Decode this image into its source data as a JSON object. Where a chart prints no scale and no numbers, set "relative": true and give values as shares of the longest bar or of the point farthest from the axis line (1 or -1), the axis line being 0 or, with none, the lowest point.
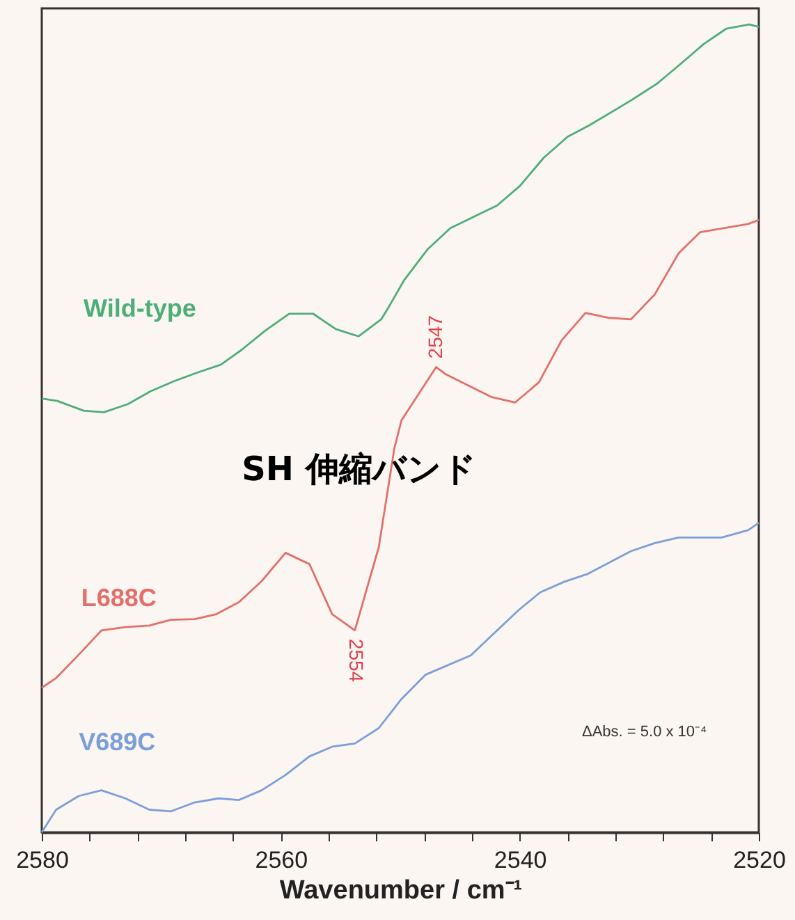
{
  "chart_data": {
    "type": "line",
    "relative": true,
    "xlabel": "Wavenumber / cm⁻¹",
    "xlim": [
      2580,
      2520
    ],
    "xticks": [
      2580,
      {
        "value": 2576,
        "label": null
      },
      {
        "value": 2572,
        "label": null
      },
      {
        "value": 2568,
        "label": null
      },
      {
        "value": 2564,
        "label": null
      },
      2560,
      {
        "value": 2556,
        "label": null
      },
      {
        "value": 2552,
        "label": null
      },
      {
        "value": 2548,
        "label": null
      },
      {
        "value": 2544,
        "label": null
      },
      2540,
      {
        "value": 2536,
        "label": null
      },
      {
        "value": 2532,
        "label": null
      },
      {
        "value": 2528,
        "label": null
      },
      {
        "value": 2524,
        "label": null
      },
      2520
    ],
    "grid": false,
    "legend": false,
    "line_style": "solid",
    "marker": "none",
    "annotations": [
      "SH 伸縮バンド",
      "ΔAbs. = 5.0 x 10⁻⁴",
      {
        "text": "2547",
        "x": 2547,
        "y": 0.576
      },
      {
        "text": "2554",
        "x": 2553.8,
        "y": 0.25
      }
    ],
    "series": [
      {
        "name": "Wild-type",
        "color": "#4fae78",
        "x": [
          2580,
          2578.7,
          2576.5,
          2574.8,
          2572.8,
          2570.9,
          2569,
          2567,
          2565,
          2563.3,
          2561.3,
          2559.3,
          2557.3,
          2555.4,
          2553.5,
          2551.6,
          2550.9,
          2549.7,
          2547.7,
          2545.8,
          2541.9,
          2540,
          2538,
          2536,
          2534.2,
          2530.7,
          2528.5,
          2526.4,
          2524.6,
          2522.7,
          2520.8,
          2520
        ],
        "values": [
          0.537,
          0.534,
          0.522,
          0.52,
          0.53,
          0.546,
          0.558,
          0.569,
          0.579,
          0.597,
          0.621,
          0.642,
          0.642,
          0.623,
          0.614,
          0.635,
          0.652,
          0.683,
          0.722,
          0.748,
          0.776,
          0.8,
          0.835,
          0.861,
          0.875,
          0.906,
          0.927,
          0.953,
          0.976,
          0.995,
          1,
          0.997
        ]
      },
      {
        "name": "L688C",
        "color": "#e2706a",
        "x": [
          2580,
          2578.8,
          2576.7,
          2575,
          2573,
          2571,
          2569.2,
          2567.2,
          2565.4,
          2563.5,
          2561.6,
          2559.6,
          2557.6,
          2555.7,
          2553.8,
          2551.8,
          2550.5,
          2549.9,
          2547,
          2546.2,
          2542.4,
          2540.4,
          2538.4,
          2536.5,
          2534.5,
          2532.6,
          2530.7,
          2528.7,
          2526.7,
          2524.9,
          2520.9,
          2520
        ],
        "values": [
          0.179,
          0.191,
          0.223,
          0.25,
          0.254,
          0.256,
          0.263,
          0.264,
          0.27,
          0.285,
          0.311,
          0.346,
          0.332,
          0.27,
          0.25,
          0.353,
          0.475,
          0.51,
          0.576,
          0.567,
          0.539,
          0.532,
          0.557,
          0.609,
          0.643,
          0.637,
          0.635,
          0.666,
          0.717,
          0.743,
          0.753,
          0.758
        ]
      },
      {
        "name": "V689C",
        "color": "#7b9fd8",
        "x": [
          2580,
          2578.8,
          2576.9,
          2575,
          2573,
          2571,
          2569.2,
          2567.2,
          2565.2,
          2563.5,
          2561.6,
          2559.6,
          2557.6,
          2555.7,
          2553.8,
          2551.8,
          2549.9,
          2547.9,
          2544.1,
          2542.4,
          2540.1,
          2538.3,
          2536.3,
          2534.3,
          2530.7,
          2528.7,
          2526.7,
          2523.1,
          2520.9,
          2520
        ],
        "values": [
          0,
          0.028,
          0.045,
          0.052,
          0.042,
          0.028,
          0.026,
          0.037,
          0.042,
          0.04,
          0.052,
          0.071,
          0.094,
          0.106,
          0.11,
          0.129,
          0.165,
          0.195,
          0.219,
          0.243,
          0.275,
          0.297,
          0.31,
          0.32,
          0.348,
          0.358,
          0.365,
          0.365,
          0.374,
          0.383
        ]
      }
    ]
  }
}
